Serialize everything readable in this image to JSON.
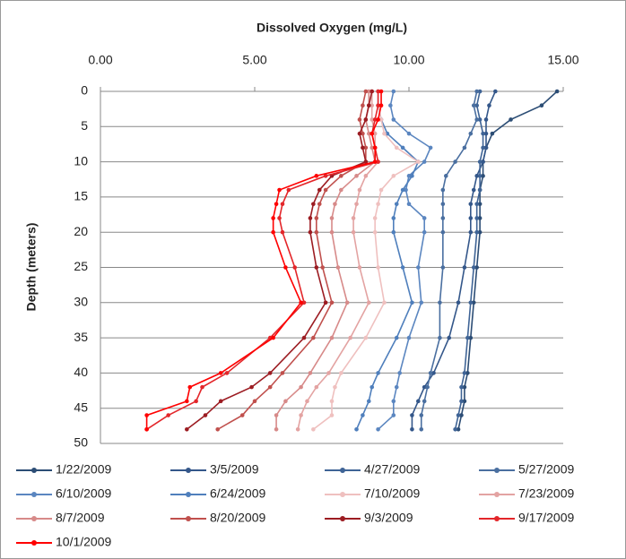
{
  "chart_data": {
    "type": "line",
    "title": "Dissolved Oxygen (mg/L)",
    "y_label": "Depth (meters)",
    "xlim": [
      0,
      15
    ],
    "xticks": [
      {
        "value": 0,
        "label": "0.00"
      },
      {
        "value": 5,
        "label": "5.00"
      },
      {
        "value": 10,
        "label": "10.00"
      },
      {
        "value": 15,
        "label": "15.00"
      }
    ],
    "ylim": [
      0,
      50
    ],
    "yticks": [
      0,
      5,
      10,
      15,
      20,
      25,
      30,
      35,
      40,
      45,
      50
    ],
    "y_reversed": true,
    "grid": true,
    "y": [
      0,
      2,
      4,
      6,
      8,
      10,
      12,
      14,
      16,
      18,
      20,
      25,
      30,
      35,
      40,
      42,
      44,
      46,
      48
    ],
    "series": [
      {
        "name": "1/22/2009",
        "color": "#2c4d75",
        "values": [
          14.8,
          14.3,
          13.3,
          12.7,
          12.5,
          12.4,
          12.4,
          12.3,
          12.3,
          12.3,
          12.3,
          12.2,
          12.1,
          12.0,
          11.9,
          11.8,
          11.8,
          11.7,
          11.6
        ]
      },
      {
        "name": "3/5/2009",
        "color": "#34578a",
        "values": [
          12.8,
          12.6,
          12.5,
          12.5,
          12.5,
          12.4,
          12.2,
          12.1,
          12.0,
          12.0,
          12.0,
          11.8,
          11.6,
          11.3,
          10.8,
          10.5,
          10.3,
          10.1,
          10.1
        ]
      },
      {
        "name": "4/27/2009",
        "color": "#3f6496",
        "values": [
          12.3,
          12.2,
          12.3,
          12.4,
          12.4,
          12.3,
          12.3,
          12.3,
          12.2,
          12.2,
          12.2,
          12.1,
          12.0,
          11.9,
          11.8,
          11.7,
          11.7,
          11.6,
          11.5
        ]
      },
      {
        "name": "5/27/2009",
        "color": "#4a6fa0",
        "values": [
          12.2,
          12.1,
          12.2,
          12.0,
          11.8,
          11.5,
          11.2,
          11.1,
          11.1,
          11.1,
          11.1,
          11.1,
          11.0,
          11.0,
          10.7,
          10.6,
          10.5,
          10.4,
          10.4
        ]
      },
      {
        "name": "6/10/2009",
        "color": "#5b86c0",
        "values": [
          9.5,
          9.4,
          9.5,
          10.0,
          10.7,
          10.5,
          10.0,
          9.9,
          10.0,
          10.5,
          10.5,
          10.3,
          10.4,
          10.0,
          9.7,
          9.6,
          9.5,
          9.5,
          9.0
        ]
      },
      {
        "name": "6/24/2009",
        "color": "#4f7fbc",
        "values": [
          9.0,
          9.0,
          9.1,
          9.3,
          9.8,
          10.3,
          10.1,
          9.8,
          9.6,
          9.5,
          9.5,
          9.8,
          10.1,
          9.6,
          9.0,
          8.8,
          8.7,
          8.5,
          8.3
        ]
      },
      {
        "name": "7/10/2009",
        "color": "#efc0bf",
        "values": [
          9.0,
          9.0,
          9.1,
          9.2,
          9.6,
          10.3,
          9.5,
          9.1,
          9.0,
          8.9,
          8.9,
          9.0,
          9.2,
          8.6,
          7.8,
          7.6,
          7.5,
          7.5,
          6.9
        ]
      },
      {
        "name": "7/23/2009",
        "color": "#e3a3a2",
        "values": [
          8.8,
          8.8,
          8.8,
          8.9,
          8.9,
          9.0,
          8.6,
          8.4,
          8.3,
          8.2,
          8.2,
          8.4,
          8.7,
          8.1,
          7.4,
          7.0,
          6.7,
          6.5,
          6.4
        ]
      },
      {
        "name": "8/7/2009",
        "color": "#d78a89",
        "values": [
          8.7,
          8.7,
          8.6,
          8.7,
          8.8,
          8.9,
          8.3,
          7.8,
          7.6,
          7.5,
          7.5,
          7.7,
          8.0,
          7.5,
          6.8,
          6.5,
          6.0,
          5.7,
          5.7
        ]
      },
      {
        "name": "8/20/2009",
        "color": "#c0504d",
        "values": [
          8.6,
          8.5,
          8.4,
          8.5,
          8.6,
          8.6,
          7.8,
          7.3,
          7.1,
          7.0,
          7.0,
          7.2,
          7.5,
          6.9,
          5.9,
          5.5,
          5.0,
          4.6,
          3.8
        ]
      },
      {
        "name": "9/3/2009",
        "color": "#9c1c22",
        "values": [
          8.8,
          8.7,
          8.6,
          8.4,
          8.5,
          8.6,
          7.5,
          7.1,
          6.9,
          6.8,
          6.8,
          7.0,
          7.3,
          6.6,
          5.5,
          4.9,
          3.9,
          3.4,
          2.8
        ]
      },
      {
        "name": "9/17/2009",
        "color": "#e3262a",
        "values": [
          9.0,
          9.0,
          8.9,
          8.8,
          8.9,
          9.0,
          7.3,
          6.1,
          5.9,
          5.8,
          5.9,
          6.3,
          6.6,
          5.5,
          4.1,
          3.3,
          3.1,
          2.2,
          1.5
        ]
      },
      {
        "name": "10/1/2009",
        "color": "#ff0000",
        "values": [
          9.1,
          9.1,
          9.0,
          8.8,
          8.9,
          8.9,
          7.0,
          5.8,
          5.7,
          5.6,
          5.6,
          6.0,
          6.5,
          5.6,
          3.9,
          2.9,
          2.8,
          1.5,
          1.5
        ]
      }
    ]
  }
}
